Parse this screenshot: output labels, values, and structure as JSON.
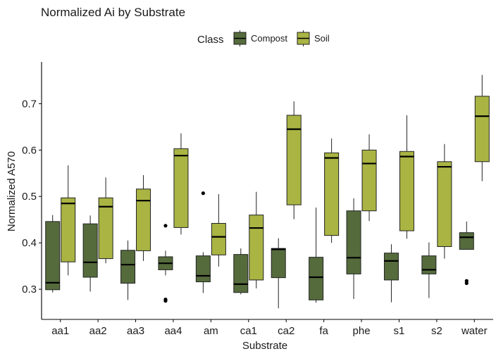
{
  "chart_data": {
    "type": "boxplot",
    "title": "Normalized Ai by Substrate",
    "xlabel": "Substrate",
    "ylabel": "Normalized A570",
    "ylim": [
      0.235,
      0.79
    ],
    "yticks": [
      0.3,
      0.4,
      0.5,
      0.6,
      0.7
    ],
    "ytick_labels": [
      "0.3",
      "0.4",
      "0.5",
      "0.6",
      "0.7"
    ],
    "legend": {
      "title": "Class",
      "position": "top",
      "entries": [
        {
          "name": "Compost",
          "color": "#556b3c"
        },
        {
          "name": "Soil",
          "color": "#a9b443"
        }
      ]
    },
    "categories": [
      "aa1",
      "aa2",
      "aa3",
      "aa4",
      "am",
      "ca1",
      "ca2",
      "fa",
      "phe",
      "s1",
      "s2",
      "water"
    ],
    "series": [
      {
        "name": "Compost",
        "color": "#556b3c",
        "boxes": [
          {
            "min": 0.293,
            "q1": 0.299,
            "median": 0.314,
            "q3": 0.446,
            "max": 0.46,
            "outliers": []
          },
          {
            "min": 0.295,
            "q1": 0.326,
            "median": 0.358,
            "q3": 0.441,
            "max": 0.459,
            "outliers": []
          },
          {
            "min": 0.277,
            "q1": 0.313,
            "median": 0.353,
            "q3": 0.384,
            "max": 0.405,
            "outliers": []
          },
          {
            "min": 0.33,
            "q1": 0.342,
            "median": 0.356,
            "q3": 0.37,
            "max": 0.383,
            "outliers": [
              0.437,
              0.278,
              0.275
            ]
          },
          {
            "min": 0.292,
            "q1": 0.316,
            "median": 0.329,
            "q3": 0.372,
            "max": 0.38,
            "outliers": [
              0.507
            ]
          },
          {
            "min": 0.289,
            "q1": 0.293,
            "median": 0.311,
            "q3": 0.375,
            "max": 0.388,
            "outliers": []
          },
          {
            "min": 0.259,
            "q1": 0.325,
            "median": 0.386,
            "q3": 0.388,
            "max": 0.41,
            "outliers": []
          },
          {
            "min": 0.271,
            "q1": 0.277,
            "median": 0.326,
            "q3": 0.369,
            "max": 0.476,
            "outliers": []
          },
          {
            "min": 0.279,
            "q1": 0.333,
            "median": 0.368,
            "q3": 0.469,
            "max": 0.496,
            "outliers": []
          },
          {
            "min": 0.272,
            "q1": 0.32,
            "median": 0.361,
            "q3": 0.378,
            "max": 0.397,
            "outliers": []
          },
          {
            "min": 0.281,
            "q1": 0.333,
            "median": 0.342,
            "q3": 0.372,
            "max": 0.401,
            "outliers": []
          },
          {
            "min": 0.385,
            "q1": 0.386,
            "median": 0.412,
            "q3": 0.422,
            "max": 0.446,
            "outliers": [
              0.318,
              0.313
            ]
          }
        ]
      },
      {
        "name": "Soil",
        "color": "#a9b443",
        "boxes": [
          {
            "min": 0.33,
            "q1": 0.359,
            "median": 0.485,
            "q3": 0.497,
            "max": 0.567,
            "outliers": []
          },
          {
            "min": 0.356,
            "q1": 0.366,
            "median": 0.478,
            "q3": 0.497,
            "max": 0.541,
            "outliers": []
          },
          {
            "min": 0.361,
            "q1": 0.383,
            "median": 0.491,
            "q3": 0.516,
            "max": 0.546,
            "outliers": []
          },
          {
            "min": 0.418,
            "q1": 0.433,
            "median": 0.588,
            "q3": 0.603,
            "max": 0.636,
            "outliers": []
          },
          {
            "min": 0.349,
            "q1": 0.374,
            "median": 0.413,
            "q3": 0.442,
            "max": 0.505,
            "outliers": []
          },
          {
            "min": 0.302,
            "q1": 0.32,
            "median": 0.432,
            "q3": 0.46,
            "max": 0.51,
            "outliers": []
          },
          {
            "min": 0.451,
            "q1": 0.482,
            "median": 0.645,
            "q3": 0.675,
            "max": 0.705,
            "outliers": []
          },
          {
            "min": 0.4,
            "q1": 0.416,
            "median": 0.583,
            "q3": 0.594,
            "max": 0.625,
            "outliers": []
          },
          {
            "min": 0.447,
            "q1": 0.469,
            "median": 0.571,
            "q3": 0.6,
            "max": 0.634,
            "outliers": []
          },
          {
            "min": 0.409,
            "q1": 0.426,
            "median": 0.586,
            "q3": 0.597,
            "max": 0.675,
            "outliers": []
          },
          {
            "min": 0.366,
            "q1": 0.392,
            "median": 0.564,
            "q3": 0.575,
            "max": 0.613,
            "outliers": []
          },
          {
            "min": 0.533,
            "q1": 0.575,
            "median": 0.673,
            "q3": 0.716,
            "max": 0.762,
            "outliers": []
          }
        ]
      }
    ]
  }
}
